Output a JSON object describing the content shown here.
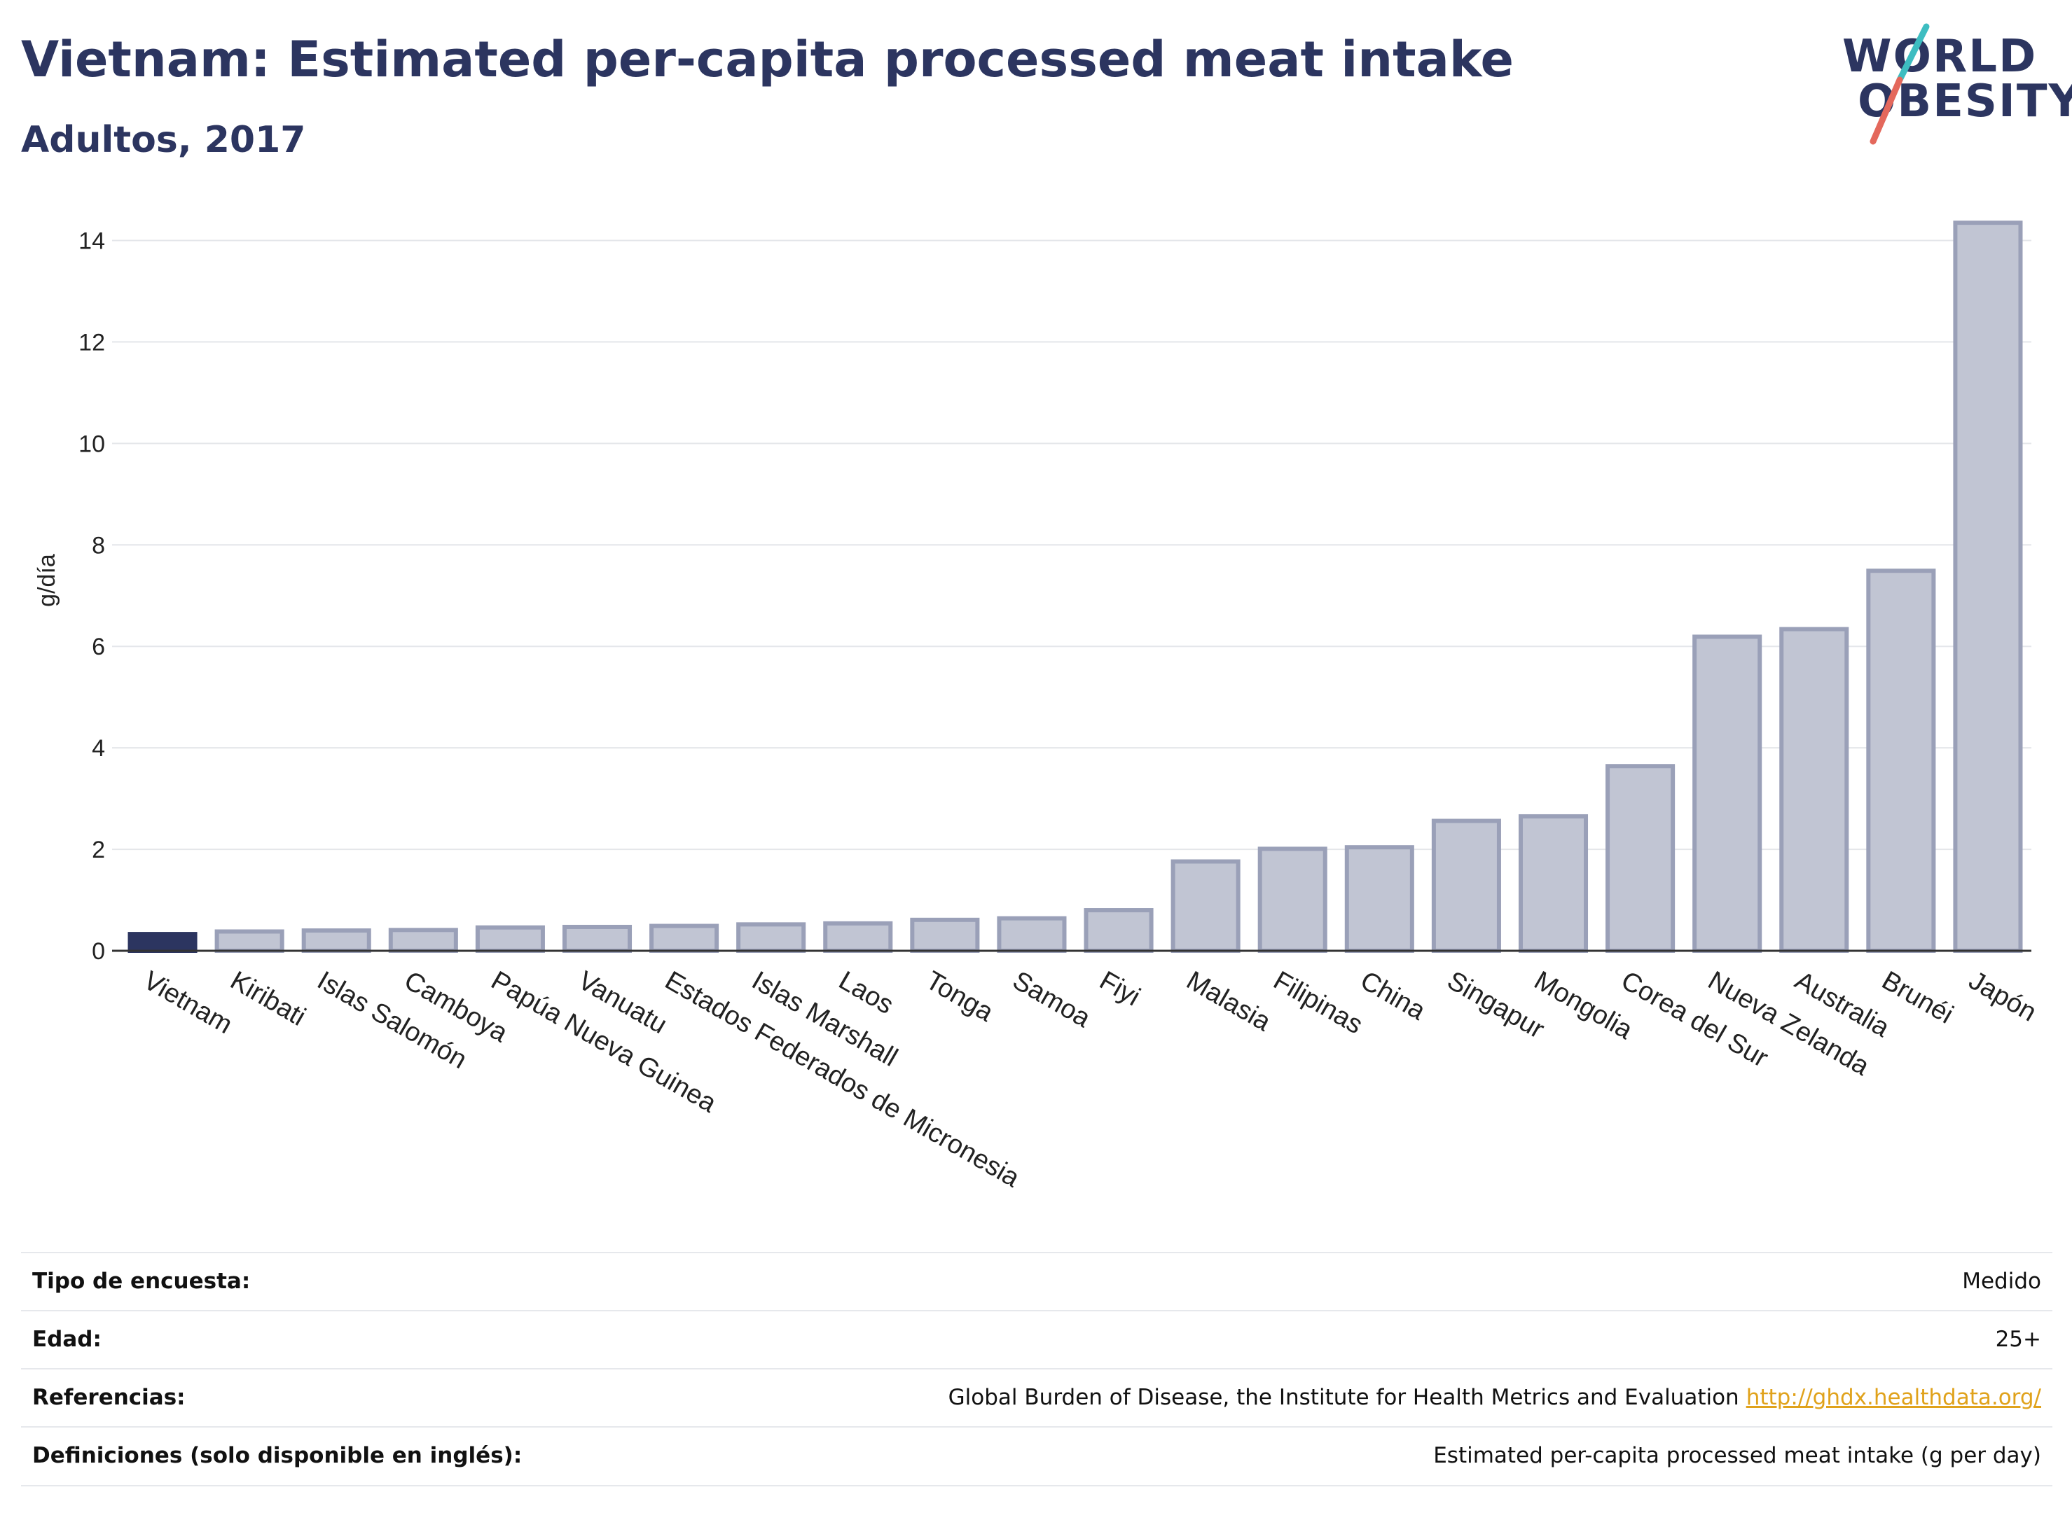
{
  "header": {
    "title": "Vietnam: Estimated per-capita processed meat intake",
    "subtitle": "Adultos, 2017"
  },
  "logo": {
    "line1": "WORLD",
    "line2": "OBESITY"
  },
  "colors": {
    "highlight": "#2c3560",
    "bar_fill": "#c1c5d3",
    "bar_stroke": "#9aa0b8",
    "text_dark": "#2c3560",
    "logo_teal": "#3dbdc1",
    "logo_red": "#e4685c"
  },
  "chart_data": {
    "type": "bar",
    "title": "Vietnam: Estimated per-capita processed meat intake",
    "subtitle": "Adultos, 2017",
    "ylabel": "g/día",
    "ylim": [
      0,
      14.6
    ],
    "yticks": [
      0,
      2,
      4,
      6,
      8,
      10,
      12,
      14
    ],
    "grid": true,
    "highlight_category": "Vietnam",
    "categories": [
      "Vietnam",
      "Kiribati",
      "Islas Salomón",
      "Camboya",
      "Papúa Nueva Guinea",
      "Vanuatu",
      "Estados Federados de Micronesia",
      "Islas Marshall",
      "Laos",
      "Tonga",
      "Samoa",
      "Fiyi",
      "Malasia",
      "Filipinas",
      "China",
      "Singapur",
      "Mongolia",
      "Corea del Sur",
      "Nueva Zelanda",
      "Australia",
      "Brunéi",
      "Japón"
    ],
    "values": [
      0.33,
      0.38,
      0.4,
      0.41,
      0.46,
      0.47,
      0.49,
      0.52,
      0.54,
      0.61,
      0.64,
      0.8,
      1.76,
      2.01,
      2.04,
      2.56,
      2.65,
      3.64,
      6.19,
      6.34,
      7.49,
      14.35
    ]
  },
  "metadata": [
    {
      "label": "Tipo de encuesta:",
      "value": "Medido"
    },
    {
      "label": "Edad:",
      "value": "25+"
    },
    {
      "label": "Referencias:",
      "value": "Global Burden of Disease, the Institute for Health Metrics and Evaluation",
      "link": "http://ghdx.healthdata.org/"
    },
    {
      "label": "Definiciones (solo disponible en inglés):",
      "value": "Estimated per-capita processed meat intake (g per day)"
    }
  ]
}
